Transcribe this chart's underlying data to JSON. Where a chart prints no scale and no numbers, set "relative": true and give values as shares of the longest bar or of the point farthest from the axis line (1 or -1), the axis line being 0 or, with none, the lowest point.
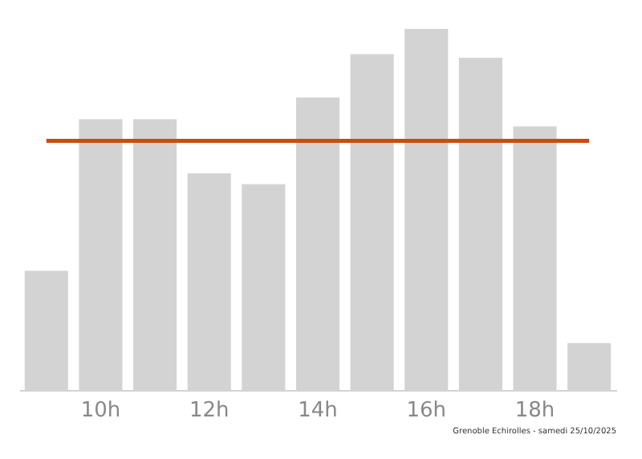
{
  "chart_data": {
    "type": "bar",
    "relative": true,
    "categories": [
      null,
      "10h",
      null,
      "12h",
      null,
      "14h",
      null,
      "16h",
      null,
      "18h",
      null
    ],
    "values": [
      0.33,
      0.75,
      0.75,
      0.6,
      0.57,
      0.81,
      0.93,
      1,
      0.92,
      0.73,
      0.13
    ],
    "color": "#d3d3d3",
    "ref_lines": [
      {
        "axis": "y",
        "value": 0.69,
        "color": "#cc4a14"
      }
    ],
    "annotations": [
      "Grenoble Echirolles - samedi 25/10/2025"
    ],
    "grid": false
  }
}
